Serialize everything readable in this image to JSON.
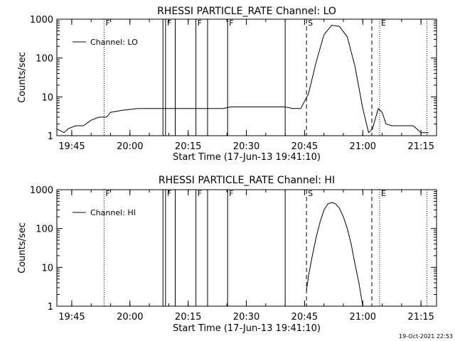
{
  "footer": {
    "timestamp": "19-Oct-2021 22:53"
  },
  "chart_data": [
    {
      "type": "line",
      "title": "RHESSI PARTICLE_RATE Channel: LO",
      "xlabel": "Start Time (17-Jun-13 19:41:10)",
      "ylabel": "Counts/sec",
      "y_scale": "log",
      "xlim": [
        "19:41:10",
        "21:19:00"
      ],
      "ylim": [
        1,
        1000
      ],
      "x_ticks": [
        "19:45",
        "20:00",
        "20:15",
        "20:30",
        "20:45",
        "21:00",
        "21:15"
      ],
      "y_ticks": [
        "1",
        "10",
        "100",
        "1000"
      ],
      "legend": {
        "entries": [
          "Channel: LO"
        ],
        "position": "top-left"
      },
      "series": [
        {
          "name": "Channel: LO",
          "x": [
            "19:41:10",
            "19:43:00",
            "19:44:00",
            "19:46:00",
            "19:48:00",
            "19:50:00",
            "19:52:00",
            "19:54:00",
            "19:55:00",
            "19:58:00",
            "20:02:00",
            "20:05:00",
            "20:08:00",
            "20:12:00",
            "20:15:00",
            "20:18:00",
            "20:21:00",
            "20:24:00",
            "20:26:00",
            "20:30:00",
            "20:33:00",
            "20:37:00",
            "20:40:00",
            "20:42:00",
            "20:44:00",
            "20:46:00",
            "20:48:00",
            "20:50:00",
            "20:52:00",
            "20:54:00",
            "20:56:00",
            "20:58:00",
            "21:00:00",
            "21:01:30",
            "21:02:30",
            "21:04:00",
            "21:05:00",
            "21:06:00",
            "21:07:30",
            "21:09:00",
            "21:11:00",
            "21:13:00",
            "21:15:00",
            "21:17:00"
          ],
          "y": [
            1.5,
            1.2,
            1.5,
            1.8,
            1.8,
            2.5,
            3.0,
            3.0,
            4.0,
            4.5,
            5.0,
            5.0,
            5.0,
            5.0,
            5.0,
            5.0,
            5.0,
            5.0,
            5.5,
            5.5,
            5.5,
            5.5,
            5.5,
            5.0,
            5.0,
            12,
            80,
            400,
            700,
            650,
            350,
            60,
            5,
            1.2,
            1.5,
            5.0,
            4.0,
            2.0,
            1.8,
            1.8,
            1.8,
            1.8,
            1.2,
            1.2
          ]
        }
      ],
      "flags": [
        {
          "label": "F",
          "time": "19:53:20",
          "line": "dotted"
        },
        {
          "label": "F",
          "time": "20:09:10",
          "line": "solid"
        },
        {
          "label": "F",
          "time": "20:17:00",
          "line": "solid"
        },
        {
          "label": "F",
          "time": "20:25:10",
          "line": "solid"
        },
        {
          "label": "S",
          "time": "20:45:30",
          "line": "dashed"
        },
        {
          "label": "E",
          "time": "21:04:20",
          "line": "dotted"
        }
      ],
      "other_lines": [
        {
          "time": "20:08:30",
          "line": "solid"
        },
        {
          "time": "20:11:40",
          "line": "solid"
        },
        {
          "time": "20:20:00",
          "line": "solid"
        },
        {
          "time": "20:40:00",
          "line": "solid"
        },
        {
          "time": "21:02:20",
          "line": "dashed"
        },
        {
          "time": "21:16:30",
          "line": "dotted"
        }
      ]
    },
    {
      "type": "line",
      "title": "RHESSI PARTICLE_RATE Channel: HI",
      "xlabel": "Start Time (17-Jun-13 19:41:10)",
      "ylabel": "Counts/sec",
      "y_scale": "log",
      "xlim": [
        "19:41:10",
        "21:19:00"
      ],
      "ylim": [
        1,
        1000
      ],
      "x_ticks": [
        "19:45",
        "20:00",
        "20:15",
        "20:30",
        "20:45",
        "21:00",
        "21:15"
      ],
      "y_ticks": [
        "1",
        "10",
        "100",
        "1000"
      ],
      "legend": {
        "entries": [
          "Channel: HI"
        ],
        "position": "top-left"
      },
      "series": [
        {
          "name": "Channel: HI",
          "x": [
            "20:45:30",
            "20:46:00",
            "20:47:00",
            "20:48:00",
            "20:49:00",
            "20:50:00",
            "20:51:00",
            "20:52:00",
            "20:53:00",
            "20:54:00",
            "20:55:00",
            "20:56:00",
            "20:57:00",
            "20:58:00",
            "20:59:00",
            "21:00:00"
          ],
          "y": [
            2.5,
            6,
            20,
            60,
            150,
            300,
            430,
            470,
            430,
            330,
            200,
            100,
            40,
            12,
            4,
            1
          ]
        }
      ],
      "flags": [
        {
          "label": "F",
          "time": "19:53:20",
          "line": "dotted"
        },
        {
          "label": "F",
          "time": "20:09:10",
          "line": "solid"
        },
        {
          "label": "F",
          "time": "20:17:00",
          "line": "solid"
        },
        {
          "label": "F",
          "time": "20:25:10",
          "line": "solid"
        },
        {
          "label": "S",
          "time": "20:45:30",
          "line": "dashed"
        },
        {
          "label": "E",
          "time": "21:04:20",
          "line": "dotted"
        }
      ],
      "other_lines": [
        {
          "time": "20:08:30",
          "line": "solid"
        },
        {
          "time": "20:11:40",
          "line": "solid"
        },
        {
          "time": "20:20:00",
          "line": "solid"
        },
        {
          "time": "20:40:00",
          "line": "solid"
        },
        {
          "time": "21:02:20",
          "line": "dashed"
        },
        {
          "time": "21:16:30",
          "line": "dotted"
        }
      ]
    }
  ]
}
